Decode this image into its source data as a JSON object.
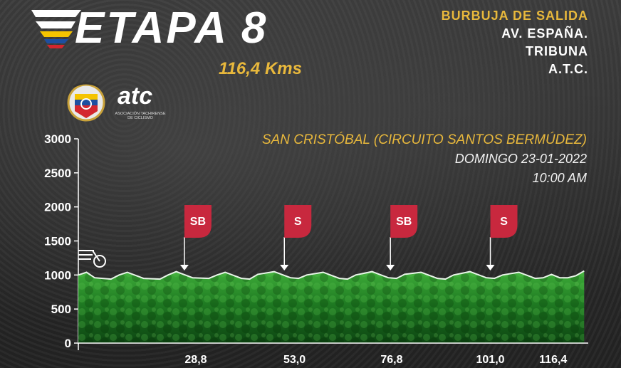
{
  "header": {
    "title": "ETAPA 8",
    "distance": "116,4 Kms"
  },
  "start": {
    "label": "BURBUJA DE SALIDA",
    "lines": [
      "AV. ESPAÑA.",
      "TRIBUNA",
      "A.T.C."
    ]
  },
  "logos": {
    "atc": "atc",
    "atc_sub": "ASOCIACIÓN TACHIRENSE DE CICLISMO"
  },
  "race": {
    "location": "SAN CRISTÓBAL (CIRCUITO SANTOS BERMÚDEZ)",
    "date": "DOMINGO 23-01-2022",
    "time": "10:00 AM"
  },
  "colors": {
    "accent": "#e8b83c",
    "marker": "#c8283e",
    "forest": "#1f7a22"
  },
  "chart_data": {
    "type": "area",
    "ylim": [
      0,
      3000
    ],
    "yticks": [
      0,
      500,
      1000,
      1500,
      2000,
      2500,
      3000
    ],
    "xlim": [
      0,
      125
    ],
    "xticks": [
      {
        "value": 28.8,
        "label": "28,8"
      },
      {
        "value": 53.0,
        "label": "53,0"
      },
      {
        "value": 76.8,
        "label": "76,8"
      },
      {
        "value": 101.0,
        "label": "101,0"
      },
      {
        "value": 116.4,
        "label": "116,4"
      }
    ],
    "series": [
      {
        "x": [
          0,
          2,
          4,
          8,
          10,
          12,
          16,
          20,
          22,
          24,
          28,
          32,
          34,
          36,
          40,
          42,
          44,
          48,
          52,
          54,
          56,
          60,
          64,
          66,
          68,
          72,
          76,
          78,
          80,
          84,
          88,
          90,
          92,
          96,
          100,
          102,
          104,
          108,
          112,
          114,
          116,
          118,
          120,
          122,
          124
        ],
        "y": [
          1000,
          1040,
          960,
          940,
          1000,
          1040,
          950,
          940,
          1000,
          1050,
          960,
          950,
          1000,
          1040,
          950,
          940,
          1010,
          1050,
          960,
          950,
          1000,
          1040,
          950,
          940,
          1000,
          1050,
          960,
          950,
          1010,
          1040,
          950,
          940,
          1000,
          1050,
          960,
          950,
          1000,
          1040,
          950,
          960,
          1010,
          960,
          960,
          990,
          1060
        ]
      }
    ],
    "markers": [
      {
        "label": "SB",
        "x": 26.0
      },
      {
        "label": "S",
        "x": 50.5
      },
      {
        "label": "SB",
        "x": 76.5
      },
      {
        "label": "S",
        "x": 101.0
      }
    ]
  }
}
